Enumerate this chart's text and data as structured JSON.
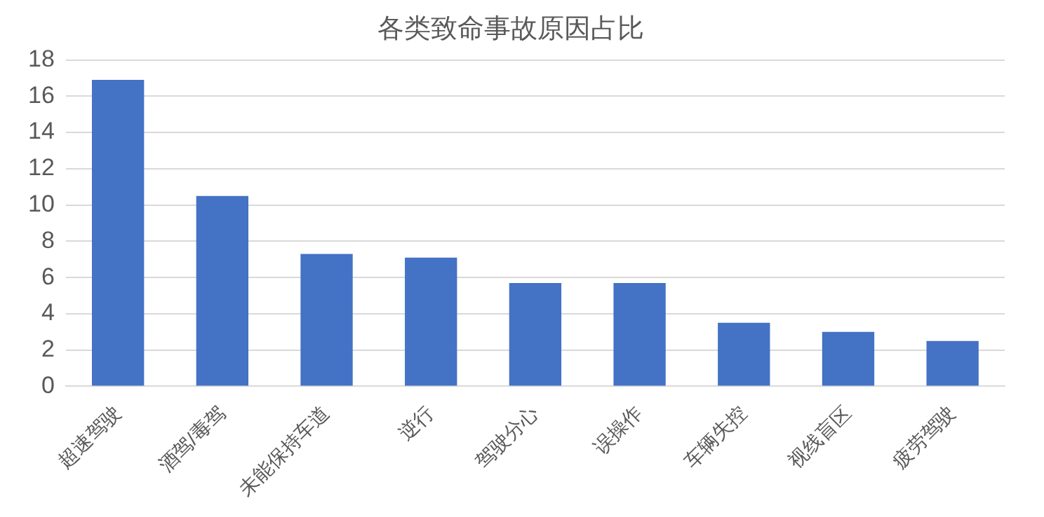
{
  "chart_data": {
    "type": "bar",
    "title": "各类致命事故原因占比",
    "categories": [
      "超速驾驶",
      "酒驾/毒驾",
      "未能保持车道",
      "逆行",
      "驾驶分心",
      "误操作",
      "车辆失控",
      "视线盲区",
      "疲劳驾驶"
    ],
    "values": [
      16.9,
      10.5,
      7.3,
      7.1,
      5.7,
      5.7,
      3.5,
      3.0,
      2.5
    ],
    "color": "#4472c4",
    "ylim": [
      0,
      18
    ],
    "yticks": [
      0,
      2,
      4,
      6,
      8,
      10,
      12,
      14,
      16,
      18
    ],
    "grid": "y",
    "legend": false
  }
}
